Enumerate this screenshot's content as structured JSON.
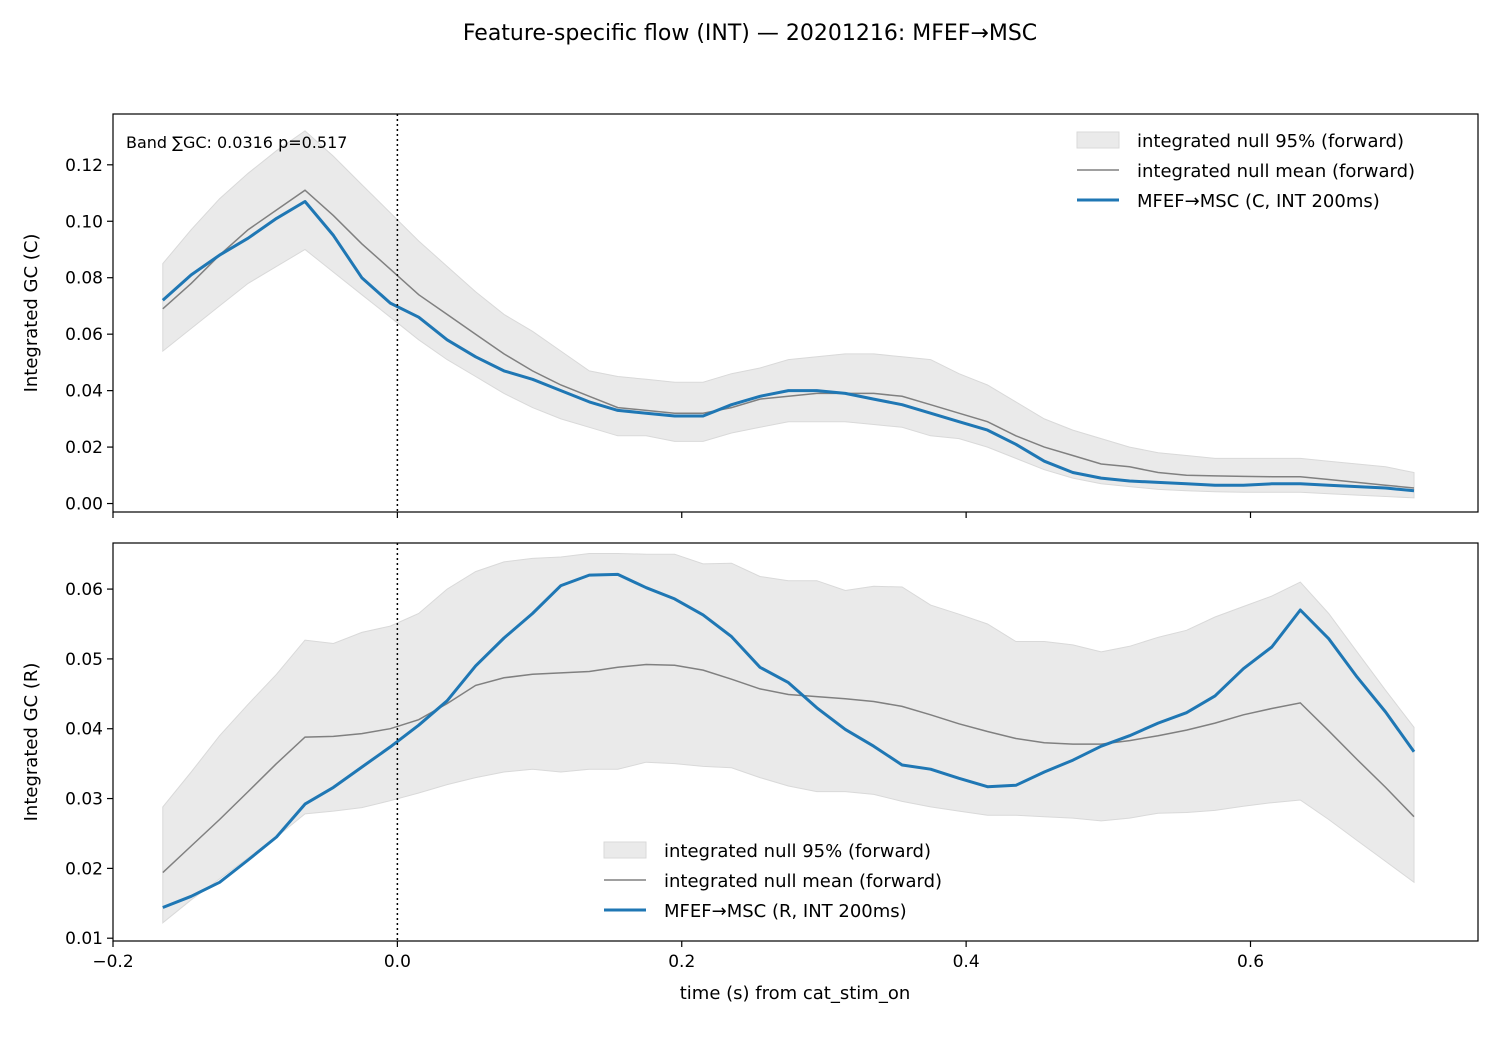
{
  "figure": {
    "title": "Feature-specific flow (INT) — 20201216: MFEF→MSC",
    "xlabel": "time (s) from cat_stim_on"
  },
  "colors": {
    "observed": "#1f77b4",
    "null_mean": "#808080",
    "null_band": "#d9d9d9",
    "marker_line": "#000000"
  },
  "chart_data": [
    {
      "type": "line",
      "id": "top",
      "ylabel": "Integrated GC (C)",
      "annotation": "Band ∑GC: 0.0316  p=0.517",
      "xlim": [
        -0.2,
        0.76
      ],
      "ylim": [
        -0.003,
        0.138
      ],
      "xticks": [
        -0.2,
        0.0,
        0.2,
        0.4,
        0.6
      ],
      "yticks": [
        0.0,
        0.02,
        0.04,
        0.06,
        0.08,
        0.1,
        0.12
      ],
      "ytick_labels": [
        "0.00",
        "0.02",
        "0.04",
        "0.06",
        "0.08",
        "0.10",
        "0.12"
      ],
      "show_xtick_labels": false,
      "vline_x": 0.0,
      "grid": false,
      "legend_location": "upper right",
      "legend": [
        "integrated null 95% (forward)",
        "integrated null mean (forward)",
        "MFEF→MSC (C, INT 200ms)"
      ],
      "x": [
        -0.165,
        -0.145,
        -0.125,
        -0.105,
        -0.085,
        -0.065,
        -0.045,
        -0.025,
        -0.005,
        0.015,
        0.035,
        0.055,
        0.075,
        0.095,
        0.115,
        0.135,
        0.155,
        0.175,
        0.195,
        0.215,
        0.235,
        0.255,
        0.275,
        0.295,
        0.315,
        0.335,
        0.355,
        0.375,
        0.395,
        0.415,
        0.435,
        0.455,
        0.475,
        0.495,
        0.515,
        0.535,
        0.555,
        0.575,
        0.595,
        0.615,
        0.635,
        0.655,
        0.675,
        0.695,
        0.715
      ],
      "series": [
        {
          "name": "integrated null 95% (forward)",
          "kind": "band",
          "lower": [
            0.054,
            0.062,
            0.07,
            0.078,
            0.084,
            0.09,
            0.082,
            0.074,
            0.066,
            0.058,
            0.051,
            0.045,
            0.039,
            0.034,
            0.03,
            0.027,
            0.024,
            0.024,
            0.022,
            0.022,
            0.025,
            0.027,
            0.029,
            0.029,
            0.029,
            0.028,
            0.027,
            0.024,
            0.023,
            0.02,
            0.016,
            0.012,
            0.009,
            0.007,
            0.006,
            0.005,
            0.0045,
            0.0042,
            0.004,
            0.004,
            0.004,
            0.0035,
            0.003,
            0.0025,
            0.002
          ],
          "upper": [
            0.085,
            0.097,
            0.108,
            0.117,
            0.125,
            0.132,
            0.123,
            0.113,
            0.103,
            0.093,
            0.084,
            0.075,
            0.067,
            0.061,
            0.054,
            0.047,
            0.045,
            0.044,
            0.043,
            0.043,
            0.046,
            0.048,
            0.051,
            0.052,
            0.053,
            0.053,
            0.052,
            0.051,
            0.046,
            0.042,
            0.036,
            0.03,
            0.026,
            0.023,
            0.02,
            0.018,
            0.017,
            0.016,
            0.016,
            0.016,
            0.016,
            0.015,
            0.014,
            0.013,
            0.011
          ]
        },
        {
          "name": "integrated null mean (forward)",
          "kind": "line",
          "values": [
            0.069,
            0.078,
            0.088,
            0.097,
            0.104,
            0.111,
            0.102,
            0.092,
            0.083,
            0.074,
            0.067,
            0.06,
            0.053,
            0.047,
            0.042,
            0.038,
            0.034,
            0.033,
            0.032,
            0.032,
            0.034,
            0.037,
            0.038,
            0.039,
            0.039,
            0.039,
            0.038,
            0.035,
            0.032,
            0.029,
            0.024,
            0.02,
            0.017,
            0.014,
            0.013,
            0.011,
            0.01,
            0.0098,
            0.0096,
            0.0095,
            0.0095,
            0.0085,
            0.0075,
            0.0065,
            0.0055
          ]
        },
        {
          "name": "MFEF→MSC (C, INT 200ms)",
          "kind": "line",
          "values": [
            0.072,
            0.081,
            0.088,
            0.094,
            0.101,
            0.107,
            0.095,
            0.08,
            0.071,
            0.066,
            0.058,
            0.052,
            0.047,
            0.044,
            0.04,
            0.036,
            0.033,
            0.032,
            0.031,
            0.031,
            0.035,
            0.038,
            0.04,
            0.04,
            0.039,
            0.037,
            0.035,
            0.032,
            0.029,
            0.026,
            0.021,
            0.015,
            0.011,
            0.009,
            0.008,
            0.0075,
            0.007,
            0.0065,
            0.0065,
            0.007,
            0.007,
            0.0065,
            0.006,
            0.0055,
            0.0045
          ]
        }
      ]
    },
    {
      "type": "line",
      "id": "bottom",
      "ylabel": "Integrated GC (R)",
      "xlim": [
        -0.2,
        0.76
      ],
      "ylim": [
        0.0096,
        0.0666
      ],
      "xticks": [
        -0.2,
        0.0,
        0.2,
        0.4,
        0.6
      ],
      "xtick_labels": [
        "−0.2",
        "0.0",
        "0.2",
        "0.4",
        "0.6"
      ],
      "yticks": [
        0.01,
        0.02,
        0.03,
        0.04,
        0.05,
        0.06
      ],
      "ytick_labels": [
        "0.01",
        "0.02",
        "0.03",
        "0.04",
        "0.05",
        "0.06"
      ],
      "show_xtick_labels": true,
      "vline_x": 0.0,
      "grid": false,
      "legend_location": "lower center",
      "legend": [
        "integrated null 95% (forward)",
        "integrated null mean (forward)",
        "MFEF→MSC (R, INT 200ms)"
      ],
      "x": [
        -0.165,
        -0.145,
        -0.125,
        -0.105,
        -0.085,
        -0.065,
        -0.045,
        -0.025,
        -0.005,
        0.015,
        0.035,
        0.055,
        0.075,
        0.095,
        0.115,
        0.135,
        0.155,
        0.175,
        0.195,
        0.215,
        0.235,
        0.255,
        0.275,
        0.295,
        0.315,
        0.335,
        0.355,
        0.375,
        0.395,
        0.415,
        0.435,
        0.455,
        0.475,
        0.495,
        0.515,
        0.535,
        0.555,
        0.575,
        0.595,
        0.615,
        0.635,
        0.655,
        0.675,
        0.695,
        0.715
      ],
      "series": [
        {
          "name": "integrated null 95% (forward)",
          "kind": "band",
          "lower": [
            0.0122,
            0.0155,
            0.0185,
            0.0215,
            0.0245,
            0.0278,
            0.0282,
            0.0287,
            0.0297,
            0.0308,
            0.032,
            0.033,
            0.0338,
            0.0342,
            0.0338,
            0.0342,
            0.0342,
            0.0352,
            0.035,
            0.0346,
            0.0344,
            0.033,
            0.0318,
            0.031,
            0.031,
            0.0306,
            0.0296,
            0.0288,
            0.0282,
            0.0276,
            0.0276,
            0.0274,
            0.0272,
            0.0268,
            0.0272,
            0.0279,
            0.028,
            0.0283,
            0.0289,
            0.0294,
            0.0298,
            0.027,
            0.024,
            0.021,
            0.018
          ],
          "upper": [
            0.0288,
            0.0338,
            0.039,
            0.0435,
            0.0478,
            0.0527,
            0.0522,
            0.0538,
            0.0547,
            0.0565,
            0.06,
            0.0625,
            0.0639,
            0.0644,
            0.0646,
            0.0651,
            0.0651,
            0.065,
            0.065,
            0.0636,
            0.0637,
            0.0618,
            0.0612,
            0.0612,
            0.0598,
            0.0604,
            0.0603,
            0.0577,
            0.0564,
            0.055,
            0.0525,
            0.0525,
            0.052,
            0.051,
            0.0518,
            0.0531,
            0.0541,
            0.056,
            0.0575,
            0.059,
            0.061,
            0.0565,
            0.051,
            0.0455,
            0.0402
          ]
        },
        {
          "name": "integrated null mean (forward)",
          "kind": "line",
          "values": [
            0.0194,
            0.0232,
            0.027,
            0.031,
            0.035,
            0.0388,
            0.0389,
            0.0393,
            0.04,
            0.0413,
            0.0436,
            0.0462,
            0.0473,
            0.0478,
            0.048,
            0.0482,
            0.0488,
            0.0492,
            0.0491,
            0.0484,
            0.0471,
            0.0457,
            0.0449,
            0.0446,
            0.0443,
            0.0439,
            0.0432,
            0.042,
            0.0407,
            0.0396,
            0.0386,
            0.038,
            0.0378,
            0.0378,
            0.0383,
            0.039,
            0.0398,
            0.0408,
            0.042,
            0.0429,
            0.0437,
            0.0397,
            0.0356,
            0.0316,
            0.0274
          ]
        },
        {
          "name": "MFEF→MSC (R, INT 200ms)",
          "kind": "line",
          "values": [
            0.0144,
            0.016,
            0.018,
            0.0212,
            0.0245,
            0.0292,
            0.0316,
            0.0345,
            0.0374,
            0.0405,
            0.044,
            0.049,
            0.053,
            0.0565,
            0.0605,
            0.062,
            0.0621,
            0.0602,
            0.0586,
            0.0563,
            0.0532,
            0.0488,
            0.0466,
            0.043,
            0.0399,
            0.0375,
            0.0348,
            0.0342,
            0.0329,
            0.0317,
            0.0319,
            0.0338,
            0.0355,
            0.0375,
            0.039,
            0.0408,
            0.0423,
            0.0447,
            0.0486,
            0.0517,
            0.057,
            0.0529,
            0.0474,
            0.0424,
            0.0367
          ]
        }
      ]
    }
  ]
}
